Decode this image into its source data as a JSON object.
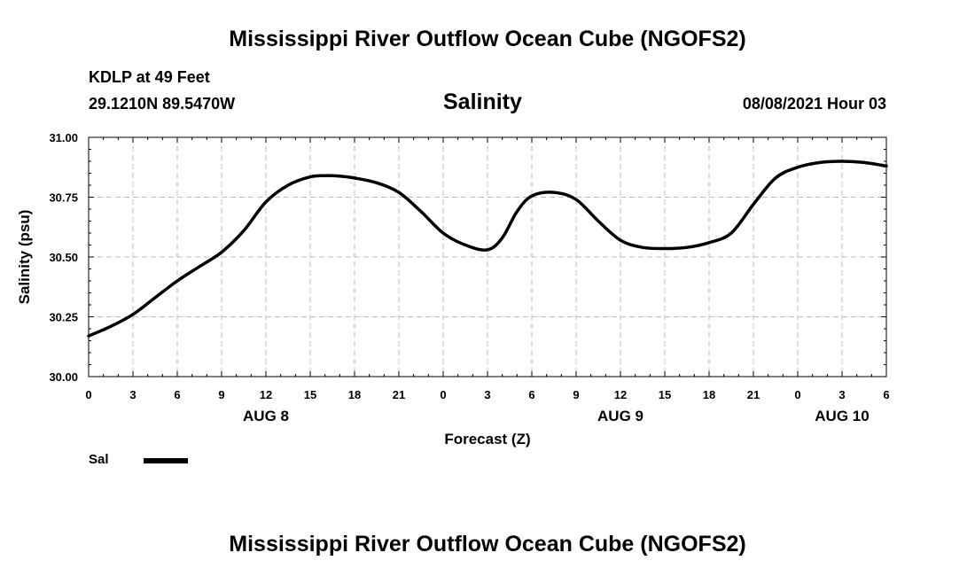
{
  "page_title": "Mississippi River Outflow Ocean Cube (NGOFS2)",
  "footer_title": "Mississippi River Outflow Ocean Cube (NGOFS2)",
  "station": {
    "name_depth": "KDLP at 49 Feet",
    "coords": "29.1210N  89.5470W"
  },
  "run_time": "08/08/2021 Hour 03",
  "legend": {
    "label": "Sal",
    "color": "#000000"
  },
  "chart_data": {
    "type": "line",
    "title": "Salinity",
    "xlabel": "Forecast (Z)",
    "ylabel": "Salinity (psu)",
    "xlim": [
      0,
      54
    ],
    "ylim": [
      30.0,
      31.0
    ],
    "x_ticks": [
      0,
      3,
      6,
      9,
      12,
      15,
      18,
      21,
      24,
      27,
      30,
      33,
      36,
      39,
      42,
      45,
      48,
      51,
      54
    ],
    "x_tick_labels": [
      "0",
      "3",
      "6",
      "9",
      "12",
      "15",
      "18",
      "21",
      "0",
      "3",
      "6",
      "9",
      "12",
      "15",
      "18",
      "21",
      "0",
      "3",
      "6"
    ],
    "y_ticks": [
      30.0,
      30.25,
      30.5,
      30.75,
      31.0
    ],
    "y_tick_labels": [
      "30.00",
      "30.25",
      "30.50",
      "30.75",
      "31.00"
    ],
    "date_labels": [
      {
        "x": 12,
        "label": "AUG 8"
      },
      {
        "x": 36,
        "label": "AUG 9"
      },
      {
        "x": 51,
        "label": "AUG 10"
      }
    ],
    "grid": true,
    "series": [
      {
        "name": "Sal",
        "x": [
          0,
          1.5,
          3,
          4.5,
          6,
          7.5,
          9,
          10.5,
          12,
          13.5,
          15,
          16,
          17,
          18,
          19.5,
          21,
          22.5,
          24,
          25.5,
          27,
          28,
          29,
          30,
          31.5,
          33,
          34.5,
          36,
          37.5,
          39,
          40.5,
          42,
          43.5,
          45,
          46.5,
          48,
          49.5,
          51,
          52.5,
          54
        ],
        "values": [
          30.17,
          30.21,
          30.26,
          30.33,
          30.4,
          30.46,
          30.52,
          30.61,
          30.73,
          30.8,
          30.835,
          30.84,
          30.838,
          30.83,
          30.81,
          30.77,
          30.69,
          30.6,
          30.55,
          30.53,
          30.58,
          30.69,
          30.755,
          30.77,
          30.74,
          30.65,
          30.57,
          30.54,
          30.535,
          30.54,
          30.56,
          30.6,
          30.72,
          30.83,
          30.875,
          30.895,
          30.9,
          30.895,
          30.88
        ]
      }
    ]
  }
}
